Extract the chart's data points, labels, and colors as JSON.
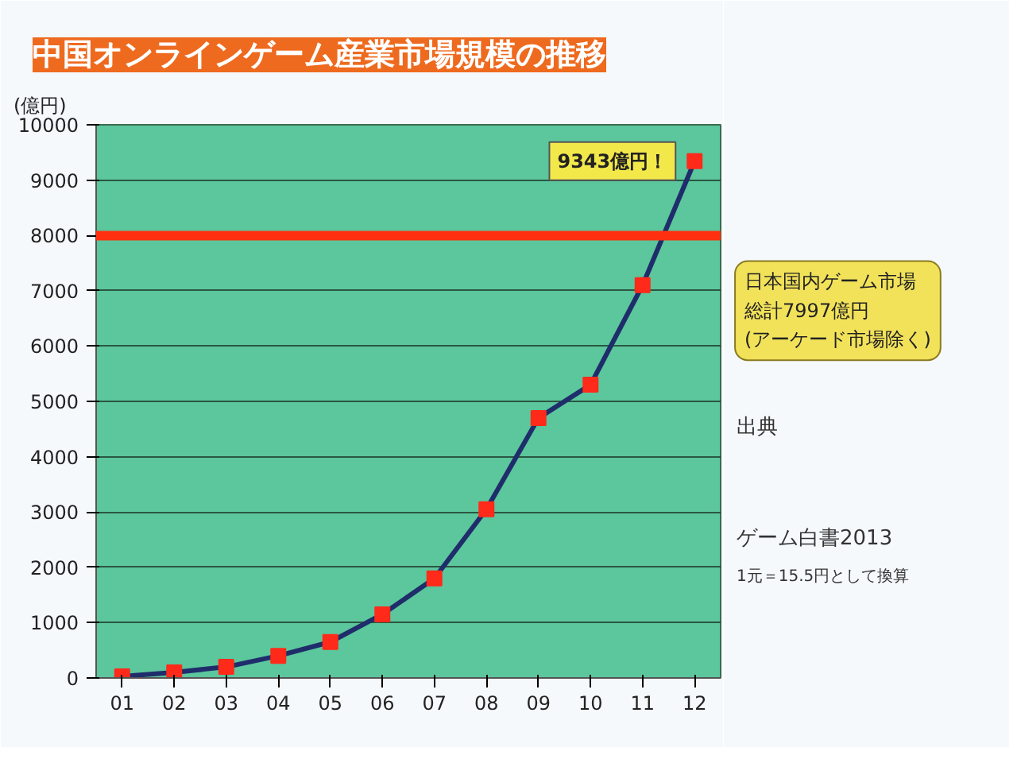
{
  "chart_data": {
    "type": "line",
    "title": "中国オンラインゲーム産業市場規模の推移",
    "ylabel": "(億円)",
    "categories": [
      "01",
      "02",
      "03",
      "04",
      "05",
      "06",
      "07",
      "08",
      "09",
      "10",
      "11",
      "12"
    ],
    "series": [
      {
        "color": "#1f2d6b",
        "colors": [
          "#ff2a1a",
          "#ff2a1a",
          "#ff2a1a",
          "#ff2a1a",
          "#ff2a1a",
          "#ff2a1a",
          "#ff2a1a",
          "#ff2a1a",
          "#ff2a1a",
          "#ff2a1a",
          "#ff2a1a",
          "#ff2a1a"
        ],
        "values": [
          30,
          100,
          200,
          400,
          650,
          1150,
          1800,
          3050,
          4700,
          5300,
          7100,
          9343
        ]
      }
    ],
    "ylim": [
      0,
      10000
    ],
    "yticks": [
      0,
      1000,
      2000,
      3000,
      4000,
      5000,
      6000,
      7000,
      8000,
      9000,
      10000
    ],
    "grid": "y",
    "marker": "square",
    "line_style": "solid",
    "ref_lines": [
      {
        "axis": "y",
        "value": 7997,
        "label": "日本国内ゲーム市場総計7997億円(アーケード市場除く)",
        "color": "#ff3010"
      }
    ],
    "annotations": [
      {
        "text": "9343億円！",
        "x": "12",
        "y": 9343
      },
      "出典",
      "ゲーム白書2013",
      "1元＝15.5円として換算"
    ]
  }
}
